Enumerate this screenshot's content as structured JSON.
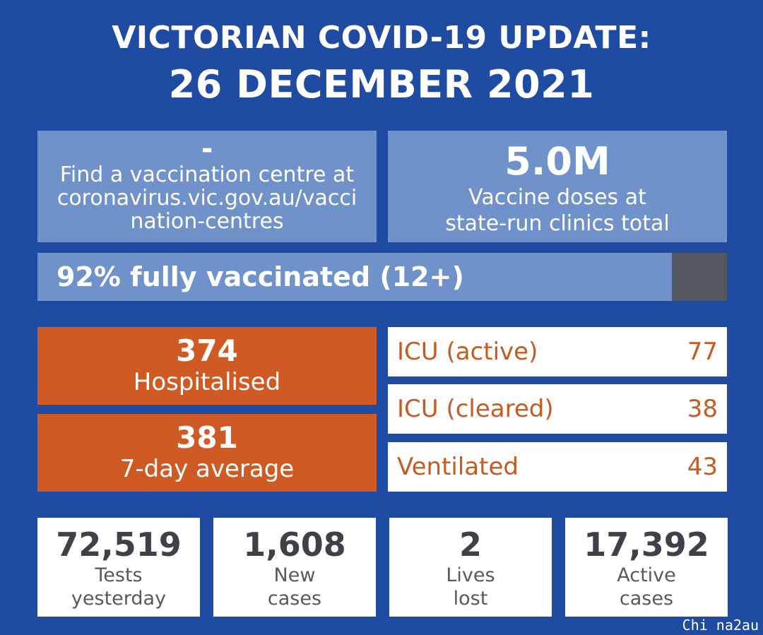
{
  "header": {
    "title": "VICTORIAN COVID-19 UPDATE:",
    "date": "26 DECEMBER 2021"
  },
  "vaccination_centre": {
    "value": "-",
    "info_line1": "Find a vaccination centre at",
    "info_line2": "coronavirus.vic.gov.au/vacci",
    "info_line3": "nation-centres"
  },
  "vaccine_doses": {
    "value": "5.0M",
    "label_line1": "Vaccine doses at",
    "label_line2": "state-run clinics total"
  },
  "fully_vaccinated": {
    "label": "92% fully vaccinated (12+)",
    "percent": 92
  },
  "hospitalised": {
    "value": "374",
    "label": "Hospitalised"
  },
  "seven_day_average": {
    "value": "381",
    "label": "7-day average"
  },
  "icu_active": {
    "label": "ICU (active)",
    "value": "77"
  },
  "icu_cleared": {
    "label": "ICU (cleared)",
    "value": "38"
  },
  "ventilated": {
    "label": "Ventilated",
    "value": "43"
  },
  "tests": {
    "value": "72,519",
    "label_line1": "Tests",
    "label_line2": "yesterday"
  },
  "new_cases": {
    "value": "1,608",
    "label_line1": "New",
    "label_line2": "cases"
  },
  "lives_lost": {
    "value": "2",
    "label_line1": "Lives",
    "label_line2": "lost"
  },
  "active_cases": {
    "value": "17,392",
    "label_line1": "Active",
    "label_line2": "cases"
  },
  "watermark": "Chi na2au",
  "colors": {
    "background": "#1f4ba3",
    "light_blue": "#7092ca",
    "orange": "#d05a24",
    "grey": "#55575e"
  }
}
